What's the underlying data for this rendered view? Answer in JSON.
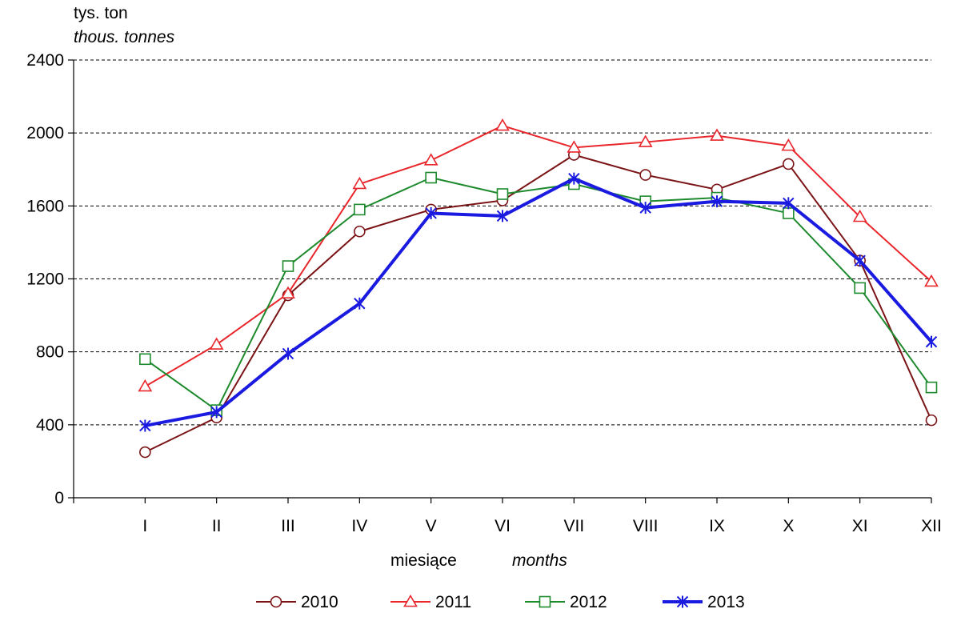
{
  "chart_data": {
    "type": "line",
    "ylabel": "tys. ton",
    "ylabel_en": "thous. tonnes",
    "xlabel": "miesiące",
    "xlabel_en": "months",
    "categories": [
      "I",
      "II",
      "III",
      "IV",
      "V",
      "VI",
      "VII",
      "VIII",
      "IX",
      "X",
      "XI",
      "XII"
    ],
    "ylim": [
      0,
      2400
    ],
    "yticks": [
      0,
      400,
      800,
      1200,
      1600,
      2000,
      2400
    ],
    "grid": "horizontal dashed",
    "legend_position": "bottom",
    "series": [
      {
        "name": "2010",
        "color": "#7b1416",
        "marker": "circle",
        "values": [
          250,
          440,
          1110,
          1460,
          1580,
          1630,
          1880,
          1770,
          1690,
          1830,
          1300,
          425
        ]
      },
      {
        "name": "2011",
        "color": "#e8262b",
        "marker": "triangle",
        "values": [
          610,
          840,
          1120,
          1720,
          1850,
          2040,
          1920,
          1950,
          1985,
          1930,
          1540,
          1185
        ]
      },
      {
        "name": "2012",
        "color": "#1e8a2e",
        "marker": "square",
        "values": [
          760,
          480,
          1270,
          1580,
          1755,
          1665,
          1720,
          1625,
          1645,
          1560,
          1150,
          605
        ]
      },
      {
        "name": "2013",
        "color": "#1a1ae0",
        "marker": "asterisk",
        "values": [
          395,
          470,
          790,
          1065,
          1560,
          1545,
          1750,
          1590,
          1625,
          1615,
          1300,
          855
        ]
      }
    ]
  }
}
